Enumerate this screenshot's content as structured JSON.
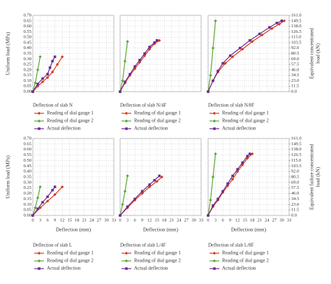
{
  "chart_data": [
    {
      "type": "line",
      "legend_title": "Deflection of slab N",
      "ylabel": "Uniform load (MPa)",
      "xlim": [
        0,
        33
      ],
      "ylim": [
        0,
        0.7
      ],
      "grid": true,
      "xticks": [
        0,
        3,
        6,
        9,
        12,
        15,
        18,
        21,
        24,
        27,
        30,
        33
      ],
      "yticks": [
        {
          "value": 0,
          "label": "0.00"
        },
        {
          "value": 0.05,
          "label": "0.05"
        },
        {
          "value": 0.1,
          "label": "0.10"
        },
        {
          "value": 0.15,
          "label": "0.15"
        },
        {
          "value": 0.2,
          "label": "0.20"
        },
        {
          "value": 0.25,
          "label": "0.25"
        },
        {
          "value": 0.3,
          "label": "0.30"
        },
        {
          "value": 0.35,
          "label": "0.35"
        },
        {
          "value": 0.4,
          "label": "0.40"
        },
        {
          "value": 0.45,
          "label": "0.45"
        },
        {
          "value": 0.5,
          "label": "0.50"
        },
        {
          "value": 0.55,
          "label": "0.55"
        },
        {
          "value": 0.6,
          "label": "0.60"
        },
        {
          "value": 0.65,
          "label": "0.65"
        },
        {
          "value": 0.7,
          "label": "0.70"
        }
      ],
      "series": [
        {
          "name": "Reading of dial gauge 1",
          "color": "#d9391c",
          "marker": "diamond",
          "x": [
            0,
            2,
            4,
            6,
            8,
            10,
            12
          ],
          "values": [
            0,
            0.05,
            0.09,
            0.13,
            0.18,
            0.25,
            0.32
          ]
        },
        {
          "name": "Reading of dial gauge 2",
          "color": "#5aa832",
          "marker": "diamond",
          "x": [
            0,
            1,
            2,
            3
          ],
          "values": [
            0,
            0.08,
            0.2,
            0.32
          ]
        },
        {
          "name": "Actual deflection",
          "color": "#6a2c91",
          "marker": "square",
          "x": [
            0,
            2,
            4,
            6,
            7,
            8,
            9
          ],
          "values": [
            0,
            0.07,
            0.12,
            0.16,
            0.22,
            0.28,
            0.32
          ]
        }
      ]
    },
    {
      "type": "line",
      "legend_title": "Deflection of slab N/4F",
      "xlim": [
        0,
        33
      ],
      "ylim": [
        0,
        0.7
      ],
      "grid": true,
      "xticks": [
        0,
        3,
        6,
        9,
        12,
        15,
        18,
        21,
        24,
        27,
        30,
        33
      ],
      "yticks": [
        0,
        0.05,
        0.1,
        0.15,
        0.2,
        0.25,
        0.3,
        0.35,
        0.4,
        0.45,
        0.5,
        0.55,
        0.6,
        0.65,
        0.7
      ],
      "series": [
        {
          "name": "Reading of dial gauge 1",
          "color": "#d9391c",
          "marker": "diamond",
          "x": [
            0,
            2,
            4,
            6,
            8,
            10,
            12,
            14,
            16
          ],
          "values": [
            0,
            0.08,
            0.15,
            0.21,
            0.27,
            0.33,
            0.39,
            0.44,
            0.47
          ]
        },
        {
          "name": "Reading of dial gauge 2",
          "color": "#5aa832",
          "marker": "diamond",
          "x": [
            0,
            1,
            2,
            3
          ],
          "values": [
            0,
            0.1,
            0.28,
            0.46
          ]
        },
        {
          "name": "Actual deflection",
          "color": "#6a2c91",
          "marker": "square",
          "x": [
            0,
            2,
            4,
            6,
            8,
            10,
            12,
            14,
            15
          ],
          "values": [
            0,
            0.09,
            0.16,
            0.23,
            0.29,
            0.35,
            0.41,
            0.45,
            0.47
          ]
        }
      ]
    },
    {
      "type": "line",
      "legend_title": "Deflection of slab N/8F",
      "y2label": [
        "Equivalent concentrated",
        "load (kN)"
      ],
      "xlim": [
        0,
        33
      ],
      "ylim": [
        0,
        0.7
      ],
      "y2lim": [
        0,
        161
      ],
      "grid": true,
      "xticks": [
        0,
        3,
        6,
        9,
        12,
        15,
        18,
        21,
        24,
        27,
        30,
        33
      ],
      "yticks": [
        0,
        0.05,
        0.1,
        0.15,
        0.2,
        0.25,
        0.3,
        0.35,
        0.4,
        0.45,
        0.5,
        0.55,
        0.6,
        0.65,
        0.7
      ],
      "y2ticks": [
        {
          "value": 0,
          "label": "0.0"
        },
        11.5,
        {
          "value": 23,
          "label": "23.0"
        },
        34.5,
        {
          "value": 46,
          "label": "46.0"
        },
        57.5,
        {
          "value": 69,
          "label": "69.0"
        },
        80.5,
        {
          "value": 92,
          "label": "92.0"
        },
        103.5,
        {
          "value": 115,
          "label": "115.0"
        },
        126.5,
        {
          "value": 138,
          "label": "138.0"
        },
        149.5,
        {
          "value": 161,
          "label": "161.0"
        }
      ],
      "series": [
        {
          "name": "Reading of dial gauge 1",
          "color": "#d9391c",
          "marker": "diamond",
          "x": [
            0,
            2,
            4,
            7,
            10,
            14,
            18,
            22,
            26,
            29,
            31
          ],
          "values": [
            0,
            0.1,
            0.18,
            0.26,
            0.32,
            0.39,
            0.46,
            0.52,
            0.58,
            0.62,
            0.65
          ]
        },
        {
          "name": "Reading of dial gauge 2",
          "color": "#5aa832",
          "marker": "diamond",
          "x": [
            0,
            1,
            2,
            3
          ],
          "values": [
            0,
            0.15,
            0.4,
            0.65
          ]
        },
        {
          "name": "Actual deflection",
          "color": "#6a2c91",
          "marker": "square",
          "x": [
            0,
            2,
            4,
            6,
            9,
            13,
            17,
            21,
            25,
            28,
            30
          ],
          "values": [
            0,
            0.1,
            0.19,
            0.26,
            0.33,
            0.4,
            0.47,
            0.53,
            0.59,
            0.63,
            0.65
          ]
        }
      ]
    },
    {
      "type": "line",
      "legend_title": "Deflection of slab L",
      "ylabel": "Uniform load (MPa)",
      "xlabel": "Deflection (mm)",
      "xlim": [
        0,
        33
      ],
      "ylim": [
        0,
        0.7
      ],
      "grid": true,
      "xticks": [
        0,
        3,
        6,
        9,
        12,
        15,
        18,
        21,
        24,
        27,
        30,
        33
      ],
      "yticks": [
        {
          "value": 0,
          "label": "0.00"
        },
        {
          "value": 0.05,
          "label": "0.05"
        },
        {
          "value": 0.1,
          "label": "0.10"
        },
        {
          "value": 0.15,
          "label": "0.15"
        },
        {
          "value": 0.2,
          "label": "0.20"
        },
        {
          "value": 0.25,
          "label": "0.25"
        },
        {
          "value": 0.3,
          "label": "0.30"
        },
        {
          "value": 0.35,
          "label": "0.35"
        },
        {
          "value": 0.4,
          "label": "0.40"
        },
        {
          "value": 0.45,
          "label": "0.45"
        },
        {
          "value": 0.5,
          "label": "0.50"
        },
        {
          "value": 0.55,
          "label": "0.55"
        },
        {
          "value": 0.6,
          "label": "0.60"
        },
        {
          "value": 0.65,
          "label": "0.65"
        },
        {
          "value": 0.7,
          "label": "0.70"
        }
      ],
      "series": [
        {
          "name": "Reading of dial gauge 1",
          "color": "#d9391c",
          "marker": "diamond",
          "x": [
            0,
            3,
            6,
            9,
            12
          ],
          "values": [
            0,
            0.07,
            0.13,
            0.19,
            0.26
          ]
        },
        {
          "name": "Reading of dial gauge 2",
          "color": "#5aa832",
          "marker": "diamond",
          "x": [
            0,
            1,
            2,
            3
          ],
          "values": [
            0,
            0.07,
            0.16,
            0.26
          ]
        },
        {
          "name": "Actual deflection",
          "color": "#6a2c91",
          "marker": "square",
          "x": [
            0,
            2,
            4,
            6,
            8,
            9
          ],
          "values": [
            0,
            0.06,
            0.12,
            0.17,
            0.23,
            0.26
          ]
        }
      ]
    },
    {
      "type": "line",
      "legend_title": "Deflection of slab L/4F",
      "xlabel": "Deflection (mm)",
      "xlim": [
        0,
        33
      ],
      "ylim": [
        0,
        0.7
      ],
      "grid": true,
      "xticks": [
        0,
        3,
        6,
        9,
        12,
        15,
        18,
        21,
        24,
        27,
        30,
        33
      ],
      "yticks": [
        0,
        0.05,
        0.1,
        0.15,
        0.2,
        0.25,
        0.3,
        0.35,
        0.4,
        0.45,
        0.5,
        0.55,
        0.6,
        0.65,
        0.7
      ],
      "series": [
        {
          "name": "Reading of dial gauge 1",
          "color": "#d9391c",
          "marker": "diamond",
          "x": [
            0,
            3,
            6,
            9,
            12,
            15,
            17
          ],
          "values": [
            0,
            0.07,
            0.14,
            0.2,
            0.26,
            0.31,
            0.35
          ]
        },
        {
          "name": "Reading of dial gauge 2",
          "color": "#5aa832",
          "marker": "diamond",
          "x": [
            0,
            1,
            2,
            3
          ],
          "values": [
            0,
            0.1,
            0.22,
            0.36
          ]
        },
        {
          "name": "Actual deflection",
          "color": "#6a2c91",
          "marker": "square",
          "x": [
            0,
            3,
            6,
            9,
            12,
            14,
            16
          ],
          "values": [
            0,
            0.08,
            0.15,
            0.22,
            0.28,
            0.32,
            0.36
          ]
        }
      ]
    },
    {
      "type": "line",
      "legend_title": "Deflection of slab L/8F",
      "xlabel": "Deflection (mm)",
      "y2label": [
        "Equivalent failure concentrated",
        "load (kN)"
      ],
      "xlim": [
        0,
        33
      ],
      "ylim": [
        0,
        0.7
      ],
      "y2lim": [
        0,
        161
      ],
      "grid": true,
      "xticks": [
        0,
        3,
        6,
        9,
        12,
        15,
        18,
        21,
        24,
        27,
        30,
        33
      ],
      "yticks": [
        0,
        0.05,
        0.1,
        0.15,
        0.2,
        0.25,
        0.3,
        0.35,
        0.4,
        0.45,
        0.5,
        0.55,
        0.6,
        0.65,
        0.7
      ],
      "y2ticks": [
        {
          "value": 0,
          "label": "0.0"
        },
        11.5,
        {
          "value": 23,
          "label": "23.0"
        },
        34.5,
        {
          "value": 46,
          "label": "46.0"
        },
        57.5,
        {
          "value": 69,
          "label": "69.0"
        },
        80.5,
        {
          "value": 92,
          "label": "92.0"
        },
        103.5,
        {
          "value": 115,
          "label": "115.0"
        },
        126.5,
        {
          "value": 138,
          "label": "138.0"
        },
        149.5,
        {
          "value": 161,
          "label": "161.0"
        }
      ],
      "series": [
        {
          "name": "Reading of dial gauge 1",
          "color": "#d9391c",
          "marker": "diamond",
          "x": [
            0,
            2,
            4,
            6,
            8,
            10,
            12,
            14,
            16,
            18
          ],
          "values": [
            0,
            0.08,
            0.14,
            0.21,
            0.27,
            0.33,
            0.4,
            0.46,
            0.52,
            0.56
          ]
        },
        {
          "name": "Reading of dial gauge 2",
          "color": "#5aa832",
          "marker": "diamond",
          "x": [
            0,
            1,
            2,
            3
          ],
          "values": [
            0,
            0.14,
            0.35,
            0.56
          ]
        },
        {
          "name": "Actual deflection",
          "color": "#6a2c91",
          "marker": "square",
          "x": [
            0,
            2,
            4,
            6,
            8,
            10,
            12,
            14,
            16,
            17
          ],
          "values": [
            0,
            0.09,
            0.15,
            0.22,
            0.29,
            0.36,
            0.42,
            0.48,
            0.54,
            0.56
          ]
        }
      ]
    }
  ]
}
